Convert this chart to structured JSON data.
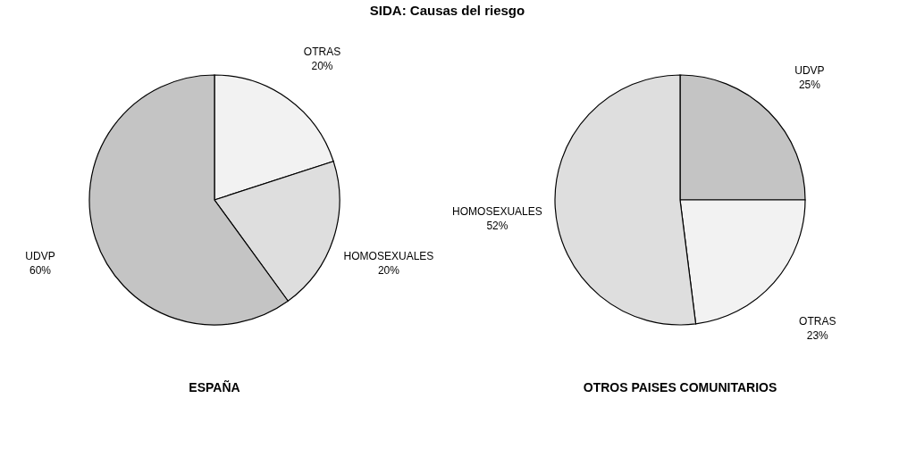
{
  "chart_data": [
    {
      "type": "pie",
      "title": "ESPAÑA",
      "annotations": [
        "SIDA: Causas del riesgo"
      ],
      "categories": [
        "OTRAS",
        "HOMOSEXUALES",
        "UDVP"
      ],
      "values": [
        20,
        20,
        60
      ],
      "value_labels": [
        "20%",
        "20%",
        "60%"
      ],
      "colors": [
        "#f2f2f2",
        "#dedede",
        "#c4c4c4"
      ],
      "legend": false
    },
    {
      "type": "pie",
      "title": "OTROS PAISES COMUNITARIOS",
      "categories": [
        "UDVP",
        "OTRAS",
        "HOMOSEXUALES"
      ],
      "values": [
        25,
        23,
        52
      ],
      "value_labels": [
        "25%",
        "23%",
        "52%"
      ],
      "colors": [
        "#c4c4c4",
        "#f2f2f2",
        "#dedede"
      ],
      "legend": false
    }
  ]
}
